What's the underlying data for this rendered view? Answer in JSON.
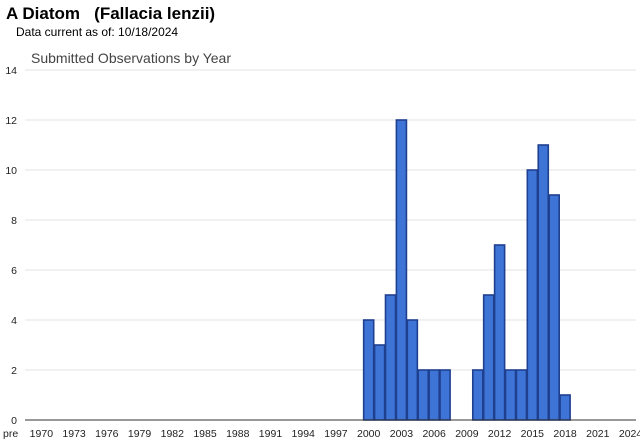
{
  "header": {
    "title": "A Diatom   (Fallacia lenzii)",
    "data_note": "Data current as of: 10/18/2024"
  },
  "chart_data": {
    "type": "bar",
    "title": "Submitted Observations by Year",
    "xlabel": "",
    "ylabel": "",
    "ylim": [
      0,
      14
    ],
    "yticks": [
      0,
      2,
      4,
      6,
      8,
      10,
      12,
      14
    ],
    "grid": true,
    "legend": "none",
    "bar_color": "#3d74d6",
    "bar_edge_color": "#1f3f8f",
    "categories": [
      "pre",
      "1970",
      "1971",
      "1972",
      "1973",
      "1974",
      "1975",
      "1976",
      "1977",
      "1978",
      "1979",
      "1980",
      "1981",
      "1982",
      "1983",
      "1984",
      "1985",
      "1986",
      "1987",
      "1988",
      "1989",
      "1990",
      "1991",
      "1992",
      "1993",
      "1994",
      "1995",
      "1996",
      "1997",
      "1998",
      "1999",
      "2000",
      "2001",
      "2002",
      "2003",
      "2004",
      "2005",
      "2006",
      "2007",
      "2008",
      "2009",
      "2010",
      "2011",
      "2012",
      "2013",
      "2014",
      "2015",
      "2016",
      "2017",
      "2018",
      "2019",
      "2020",
      "2021",
      "2022",
      "2023",
      "2024"
    ],
    "values": [
      0,
      0,
      0,
      0,
      0,
      0,
      0,
      0,
      0,
      0,
      0,
      0,
      0,
      0,
      0,
      0,
      0,
      0,
      0,
      0,
      0,
      0,
      0,
      0,
      0,
      0,
      0,
      0,
      0,
      0,
      0,
      4,
      3,
      5,
      12,
      4,
      2,
      2,
      2,
      0,
      0,
      2,
      5,
      7,
      2,
      2,
      10,
      11,
      9,
      1,
      0,
      0,
      0,
      0,
      0,
      0
    ],
    "x_tick_labels": [
      "pre",
      "1970",
      "1973",
      "1976",
      "1979",
      "1982",
      "1985",
      "1988",
      "1991",
      "1994",
      "1997",
      "2000",
      "2003",
      "2006",
      "2009",
      "2012",
      "2015",
      "2018",
      "2021",
      "2024"
    ]
  }
}
